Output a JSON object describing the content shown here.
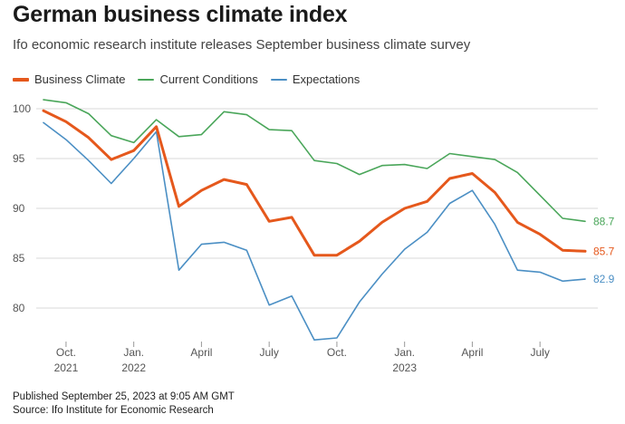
{
  "header": {
    "title": "German business climate index",
    "subtitle": "Ifo economic research institute releases September business climate survey"
  },
  "footer": {
    "published": "Published September 25, 2023 at 9:05 AM GMT",
    "source": "Source: Ifo Institute for Economic Research"
  },
  "colors": {
    "business_climate": "#e5581c",
    "current_conditions": "#4aa65a",
    "expectations": "#4b8fc4",
    "grid": "#d9d9d9",
    "axis_text": "#555555"
  },
  "chart_data": {
    "type": "line",
    "title": "German business climate index",
    "subtitle": "Ifo economic research institute releases September business climate survey",
    "xlabel": "",
    "ylabel": "",
    "ylim": [
      76,
      101
    ],
    "yticks": [
      80,
      85,
      90,
      95,
      100
    ],
    "grid": true,
    "legend_position": "top-left",
    "x": [
      "Sep 2021",
      "Oct 2021",
      "Nov 2021",
      "Dec 2021",
      "Jan 2022",
      "Feb 2022",
      "Mar 2022",
      "Apr 2022",
      "May 2022",
      "Jun 2022",
      "Jul 2022",
      "Aug 2022",
      "Sep 2022",
      "Oct 2022",
      "Nov 2022",
      "Dec 2022",
      "Jan 2023",
      "Feb 2023",
      "Mar 2023",
      "Apr 2023",
      "May 2023",
      "Jun 2023",
      "Jul 2023",
      "Aug 2023",
      "Sep 2023"
    ],
    "xticks": [
      {
        "index": 1,
        "line1": "Oct.",
        "line2": "2021"
      },
      {
        "index": 4,
        "line1": "Jan.",
        "line2": "2022"
      },
      {
        "index": 7,
        "line1": "April",
        "line2": ""
      },
      {
        "index": 10,
        "line1": "July",
        "line2": ""
      },
      {
        "index": 13,
        "line1": "Oct.",
        "line2": ""
      },
      {
        "index": 16,
        "line1": "Jan.",
        "line2": "2023"
      },
      {
        "index": 19,
        "line1": "April",
        "line2": ""
      },
      {
        "index": 22,
        "line1": "July",
        "line2": ""
      }
    ],
    "series": [
      {
        "name": "Business Climate",
        "key": "business_climate",
        "values": [
          99.8,
          98.7,
          97.1,
          94.9,
          95.8,
          98.2,
          90.2,
          91.8,
          92.9,
          92.4,
          88.7,
          89.1,
          85.3,
          85.3,
          86.7,
          88.6,
          90.0,
          90.7,
          93.0,
          93.5,
          91.6,
          88.6,
          87.4,
          85.8,
          85.7
        ],
        "end_label": "85.7"
      },
      {
        "name": "Current Conditions",
        "key": "current_conditions",
        "values": [
          100.9,
          100.6,
          99.5,
          97.3,
          96.6,
          98.9,
          97.2,
          97.4,
          99.7,
          99.4,
          97.9,
          97.8,
          94.8,
          94.5,
          93.4,
          94.3,
          94.4,
          94.0,
          95.5,
          95.2,
          94.9,
          93.6,
          91.3,
          89.0,
          88.7
        ],
        "end_label": "88.7"
      },
      {
        "name": "Expectations",
        "key": "expectations",
        "values": [
          98.6,
          96.9,
          94.8,
          92.5,
          95.0,
          97.7,
          83.8,
          86.4,
          86.6,
          85.8,
          80.3,
          81.2,
          76.8,
          77.0,
          80.6,
          83.4,
          85.9,
          87.6,
          90.5,
          91.8,
          88.4,
          83.8,
          83.6,
          82.7,
          82.9
        ],
        "end_label": "82.9"
      }
    ]
  }
}
